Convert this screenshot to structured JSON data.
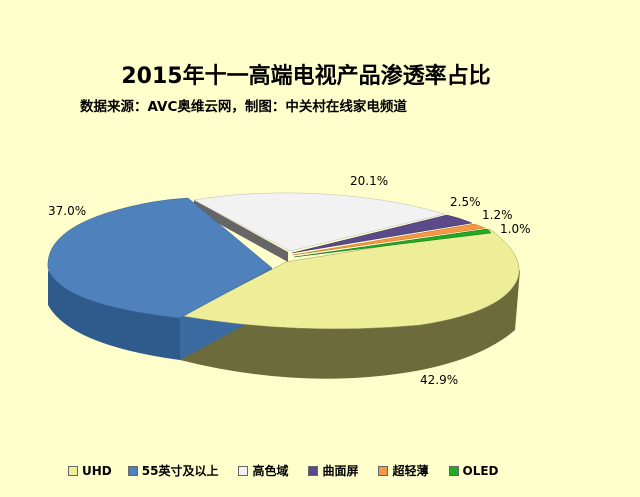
{
  "chart_data": {
    "type": "pie",
    "title": "2015年十一高端电视产品渗透率占比",
    "subtitle": "数据来源：AVC奥维云网，制图：中关村在线家电频道",
    "categories": [
      "UHD",
      "55英寸及以上",
      "高色域",
      "曲面屏",
      "超轻薄",
      "OLED"
    ],
    "values": [
      42.9,
      37.0,
      20.1,
      2.5,
      1.2,
      1.0
    ],
    "labels": [
      "42.9%",
      "37.0%",
      "20.1%",
      "2.5%",
      "1.2%",
      "1.0%"
    ],
    "colors": [
      "#eeee99",
      "#4f81bd",
      "#f2f2f2",
      "#5a4a8a",
      "#f79646",
      "#22aa22"
    ],
    "three_d": true,
    "legend_position": "bottom"
  }
}
